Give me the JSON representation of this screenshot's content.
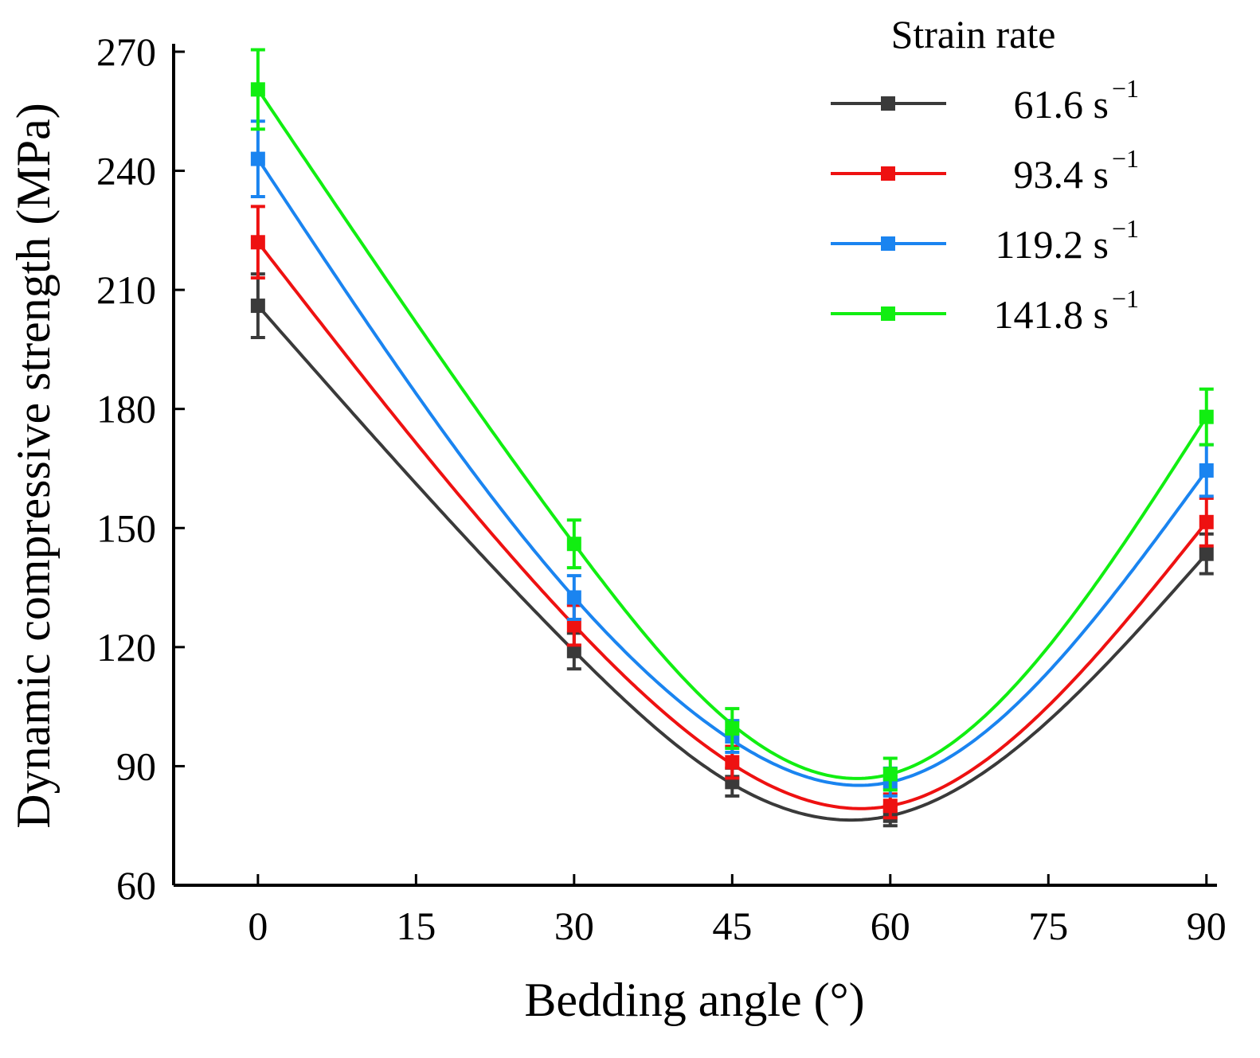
{
  "chart_data": {
    "type": "line",
    "xlabel": "Bedding angle (°)",
    "ylabel": "Dynamic compressive strength (MPa)",
    "xlim": [
      -8,
      91
    ],
    "ylim": [
      60,
      272
    ],
    "xticks": [
      0,
      15,
      30,
      45,
      60,
      75,
      90
    ],
    "yticks": [
      60,
      90,
      120,
      150,
      180,
      210,
      240,
      270
    ],
    "legend": {
      "title": "Strain rate",
      "placement": "top-right"
    },
    "x": [
      0,
      30,
      45,
      60,
      90
    ],
    "series": [
      {
        "name": "61.6 s",
        "superscript": "−1",
        "color": "#3a3a3a",
        "values": [
          206,
          119,
          86,
          77.5,
          143.5
        ],
        "errors": [
          8,
          4.5,
          3.5,
          2.5,
          5
        ],
        "fit": [
          206,
          119,
          85.5,
          77.5,
          143.5
        ]
      },
      {
        "name": "93.4 s",
        "superscript": "−1",
        "color": "#ee1111",
        "values": [
          222,
          125.5,
          91,
          80,
          151.5
        ],
        "errors": [
          9,
          5,
          4,
          3,
          6
        ],
        "fit": [
          222,
          125.5,
          90.5,
          80,
          151.5
        ]
      },
      {
        "name": "119.2 s",
        "superscript": "−1",
        "color": "#1a84f0",
        "values": [
          243,
          132.5,
          97.5,
          86,
          164.5
        ],
        "errors": [
          9.5,
          5.5,
          4,
          3.5,
          6.5
        ],
        "fit": [
          243,
          132.5,
          96.5,
          86,
          164.5
        ]
      },
      {
        "name": "141.8 s",
        "superscript": "−1",
        "color": "#11ee11",
        "values": [
          260.5,
          146,
          99.5,
          88,
          178
        ],
        "errors": [
          10,
          6,
          5,
          4,
          7
        ],
        "fit": [
          260.5,
          146,
          100.5,
          88,
          178
        ]
      }
    ]
  }
}
